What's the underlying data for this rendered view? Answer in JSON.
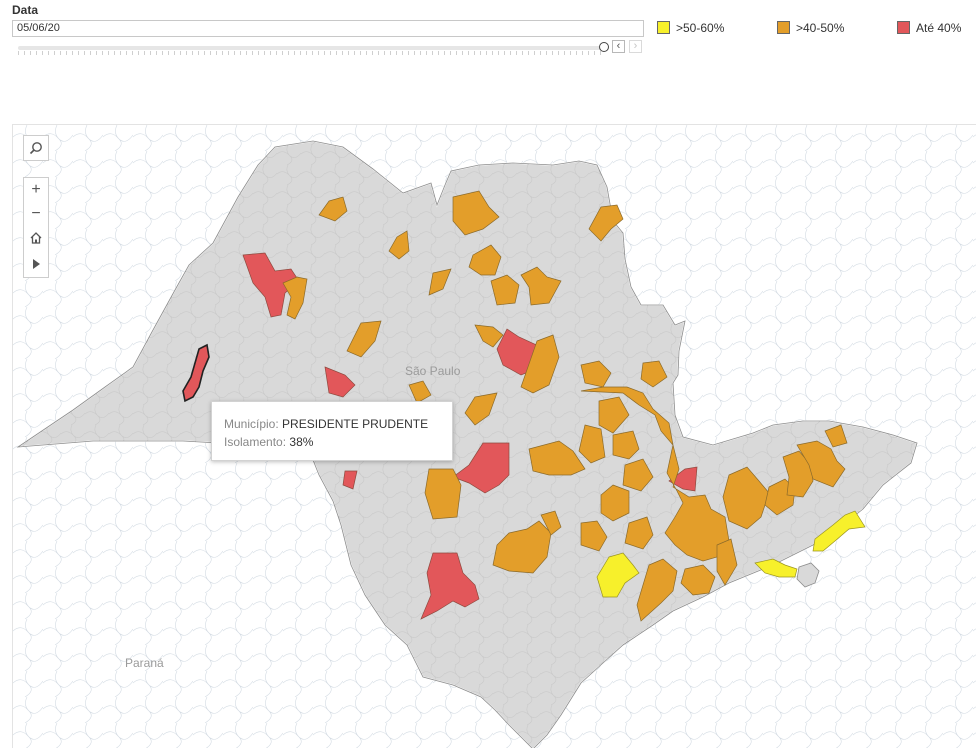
{
  "filter": {
    "label": "Data",
    "value": "05/06/20",
    "prev_glyph": "‹",
    "next_glyph": "›"
  },
  "legend": [
    {
      "label": ">50-60%",
      "color": "#f7f02b"
    },
    {
      "label": ">40-50%",
      "color": "#e39e2a"
    },
    {
      "label": "Até 40%",
      "color": "#e2575a"
    }
  ],
  "map": {
    "place_labels": [
      "São Paulo",
      "Paraná"
    ],
    "fill_colors": {
      "unselected": "#d9d9d9",
      "high": "#f7f02b",
      "mid": "#e39e2a",
      "low": "#e2575a"
    }
  },
  "tools": {
    "search_icon": "search-icon",
    "zoom_in": "+",
    "zoom_out": "−",
    "home_icon": "home-icon",
    "pan_icon": "play-icon"
  },
  "tooltip": {
    "municipio_key": "Município:",
    "municipio_value": "PRESIDENTE PRUDENTE",
    "isolamento_key": "Isolamento:",
    "isolamento_value": "38%"
  }
}
